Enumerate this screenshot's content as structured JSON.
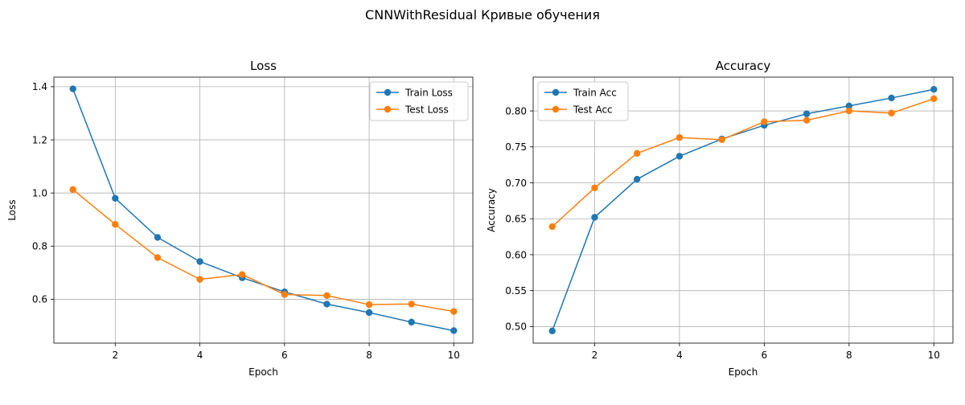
{
  "figure": {
    "suptitle": "CNNWithResidual Кривые обучения"
  },
  "chart_data": [
    {
      "type": "line",
      "title": "Loss",
      "xlabel": "Epoch",
      "ylabel": "Loss",
      "x": [
        1,
        2,
        3,
        4,
        5,
        6,
        7,
        8,
        9,
        10
      ],
      "xlim": [
        0.55,
        10.45
      ],
      "ylim": [
        0.435,
        1.436
      ],
      "xticks": [
        2,
        4,
        6,
        8,
        10
      ],
      "yticks": [
        0.6,
        0.8,
        1.0,
        1.2,
        1.4
      ],
      "ytick_labels": [
        "0.6",
        "0.8",
        "1.0",
        "1.2",
        "1.4"
      ],
      "grid": true,
      "legend": "top-right",
      "series": [
        {
          "name": "Train Loss",
          "color": "#1f77b4",
          "values": [
            1.392,
            0.98,
            0.833,
            0.742,
            0.681,
            0.628,
            0.582,
            0.55,
            0.514,
            0.482
          ]
        },
        {
          "name": "Test Loss",
          "color": "#ff7f0e",
          "values": [
            1.013,
            0.882,
            0.757,
            0.675,
            0.693,
            0.618,
            0.614,
            0.58,
            0.582,
            0.554
          ]
        }
      ]
    },
    {
      "type": "line",
      "title": "Accuracy",
      "xlabel": "Epoch",
      "ylabel": "Accuracy",
      "x": [
        1,
        2,
        3,
        4,
        5,
        6,
        7,
        8,
        9,
        10
      ],
      "xlim": [
        0.55,
        10.45
      ],
      "ylim": [
        0.477,
        0.847
      ],
      "xticks": [
        2,
        4,
        6,
        8,
        10
      ],
      "yticks": [
        0.5,
        0.55,
        0.6,
        0.65,
        0.7,
        0.75,
        0.8
      ],
      "ytick_labels": [
        "0.50",
        "0.55",
        "0.60",
        "0.65",
        "0.70",
        "0.75",
        "0.80"
      ],
      "grid": true,
      "legend": "top-left",
      "series": [
        {
          "name": "Train Acc",
          "color": "#1f77b4",
          "values": [
            0.494,
            0.652,
            0.705,
            0.737,
            0.761,
            0.78,
            0.796,
            0.807,
            0.818,
            0.83
          ]
        },
        {
          "name": "Test Acc",
          "color": "#ff7f0e",
          "values": [
            0.639,
            0.693,
            0.741,
            0.763,
            0.76,
            0.785,
            0.787,
            0.8,
            0.797,
            0.817
          ]
        }
      ]
    }
  ]
}
